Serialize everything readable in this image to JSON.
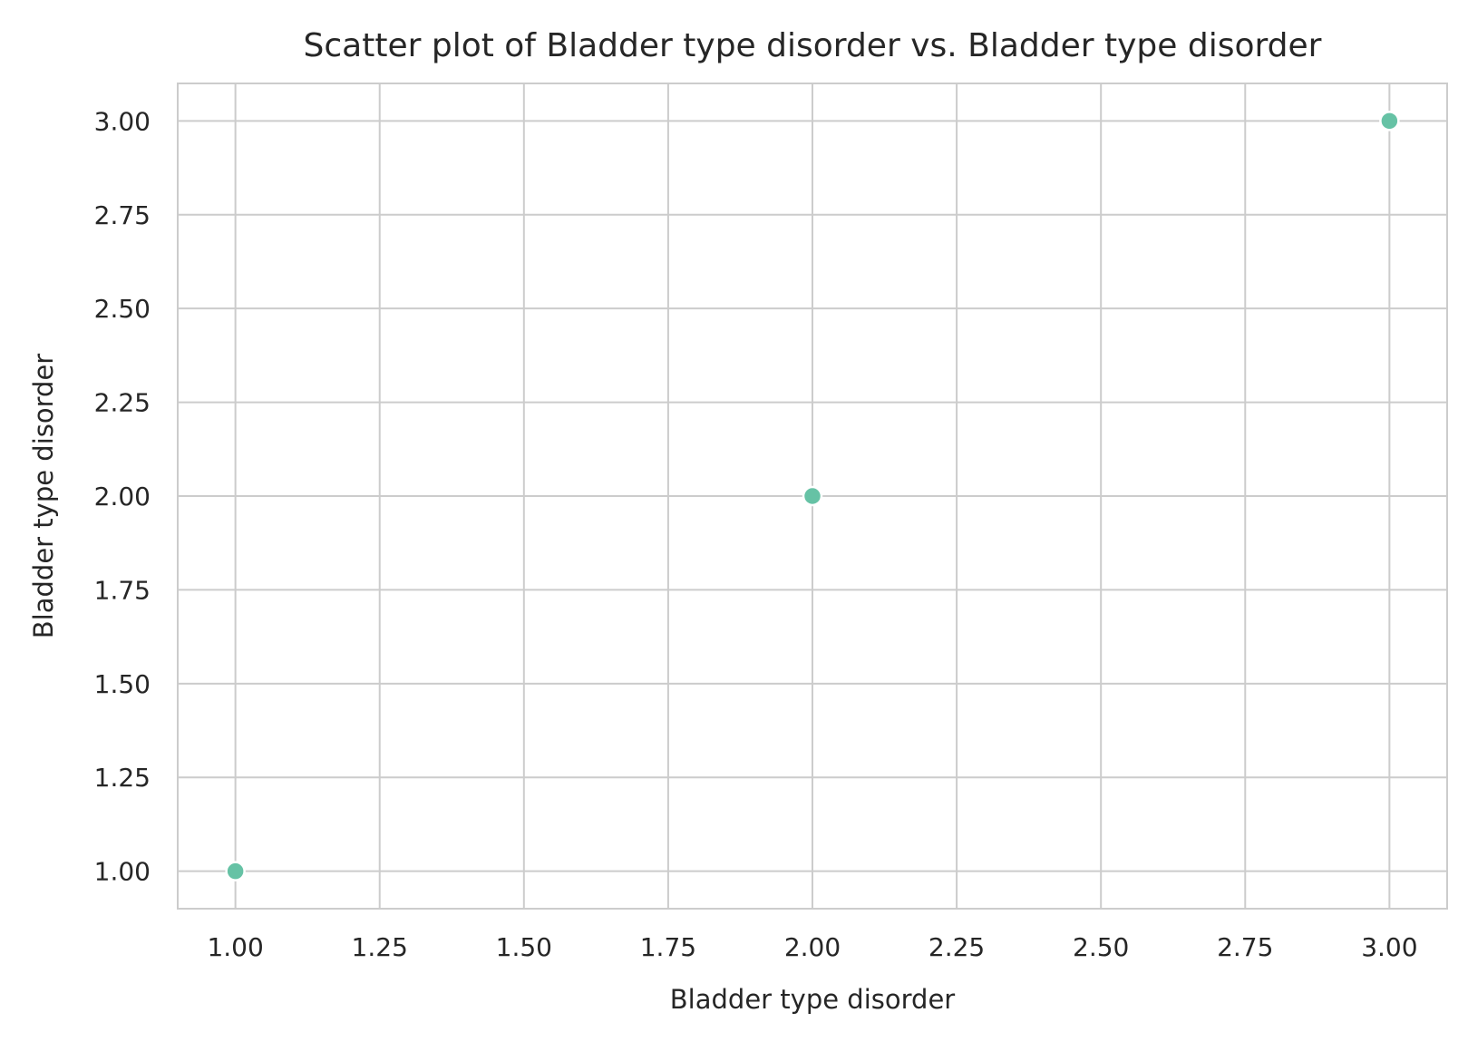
{
  "chart_data": {
    "type": "scatter",
    "title": "Scatter plot of Bladder type disorder vs. Bladder type disorder",
    "xlabel": "Bladder type disorder",
    "ylabel": "Bladder type disorder",
    "xlim": [
      0.9,
      3.1
    ],
    "ylim": [
      0.9,
      3.1
    ],
    "x_ticks": [
      1.0,
      1.25,
      1.5,
      1.75,
      2.0,
      2.25,
      2.5,
      2.75,
      3.0
    ],
    "y_ticks": [
      1.0,
      1.25,
      1.5,
      1.75,
      2.0,
      2.25,
      2.5,
      2.75,
      3.0
    ],
    "x_tick_labels": [
      "1.00",
      "1.25",
      "1.50",
      "1.75",
      "2.00",
      "2.25",
      "2.50",
      "2.75",
      "3.00"
    ],
    "y_tick_labels": [
      "1.00",
      "1.25",
      "1.50",
      "1.75",
      "2.00",
      "2.25",
      "2.50",
      "2.75",
      "3.00"
    ],
    "grid": true,
    "point_color": "#66c2a5",
    "points": [
      {
        "x": 1.0,
        "y": 1.0
      },
      {
        "x": 2.0,
        "y": 2.0
      },
      {
        "x": 3.0,
        "y": 3.0
      }
    ]
  }
}
